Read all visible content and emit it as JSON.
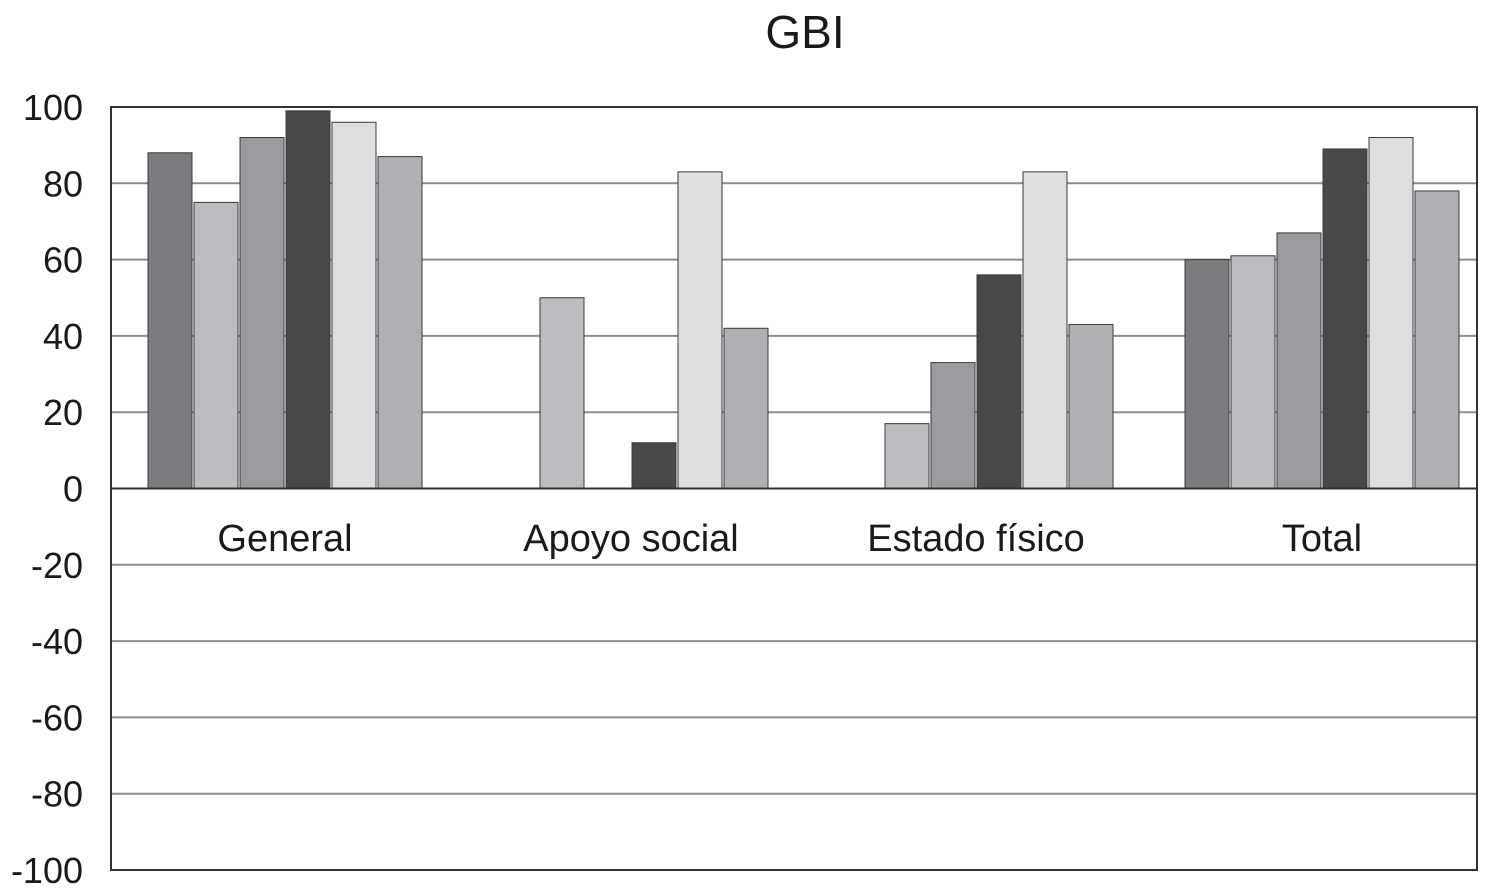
{
  "chart_data": {
    "type": "bar",
    "title": "GBI",
    "xlabel": "",
    "ylabel": "",
    "ylim": [
      -100,
      100
    ],
    "yticks": [
      100,
      80,
      60,
      40,
      20,
      0,
      -20,
      -40,
      -60,
      -80,
      -100
    ],
    "grid": true,
    "legend": "none",
    "categories": [
      "General",
      "Apoyo social",
      "Estado físico",
      "Total"
    ],
    "series": [
      {
        "color": "#7b7c80",
        "values": [
          88,
          0,
          0,
          60
        ]
      },
      {
        "color": "#bcbdc0",
        "values": [
          75,
          50,
          17,
          61
        ]
      },
      {
        "color": "#9a9b9e",
        "values": [
          92,
          0,
          33,
          67
        ]
      },
      {
        "color": "#48484b",
        "values": [
          99,
          12,
          56,
          89
        ]
      },
      {
        "color": "#dddee0",
        "values": [
          96,
          83,
          83,
          92
        ]
      },
      {
        "color": "#afb0b3",
        "values": [
          87,
          42,
          43,
          78
        ]
      }
    ]
  }
}
